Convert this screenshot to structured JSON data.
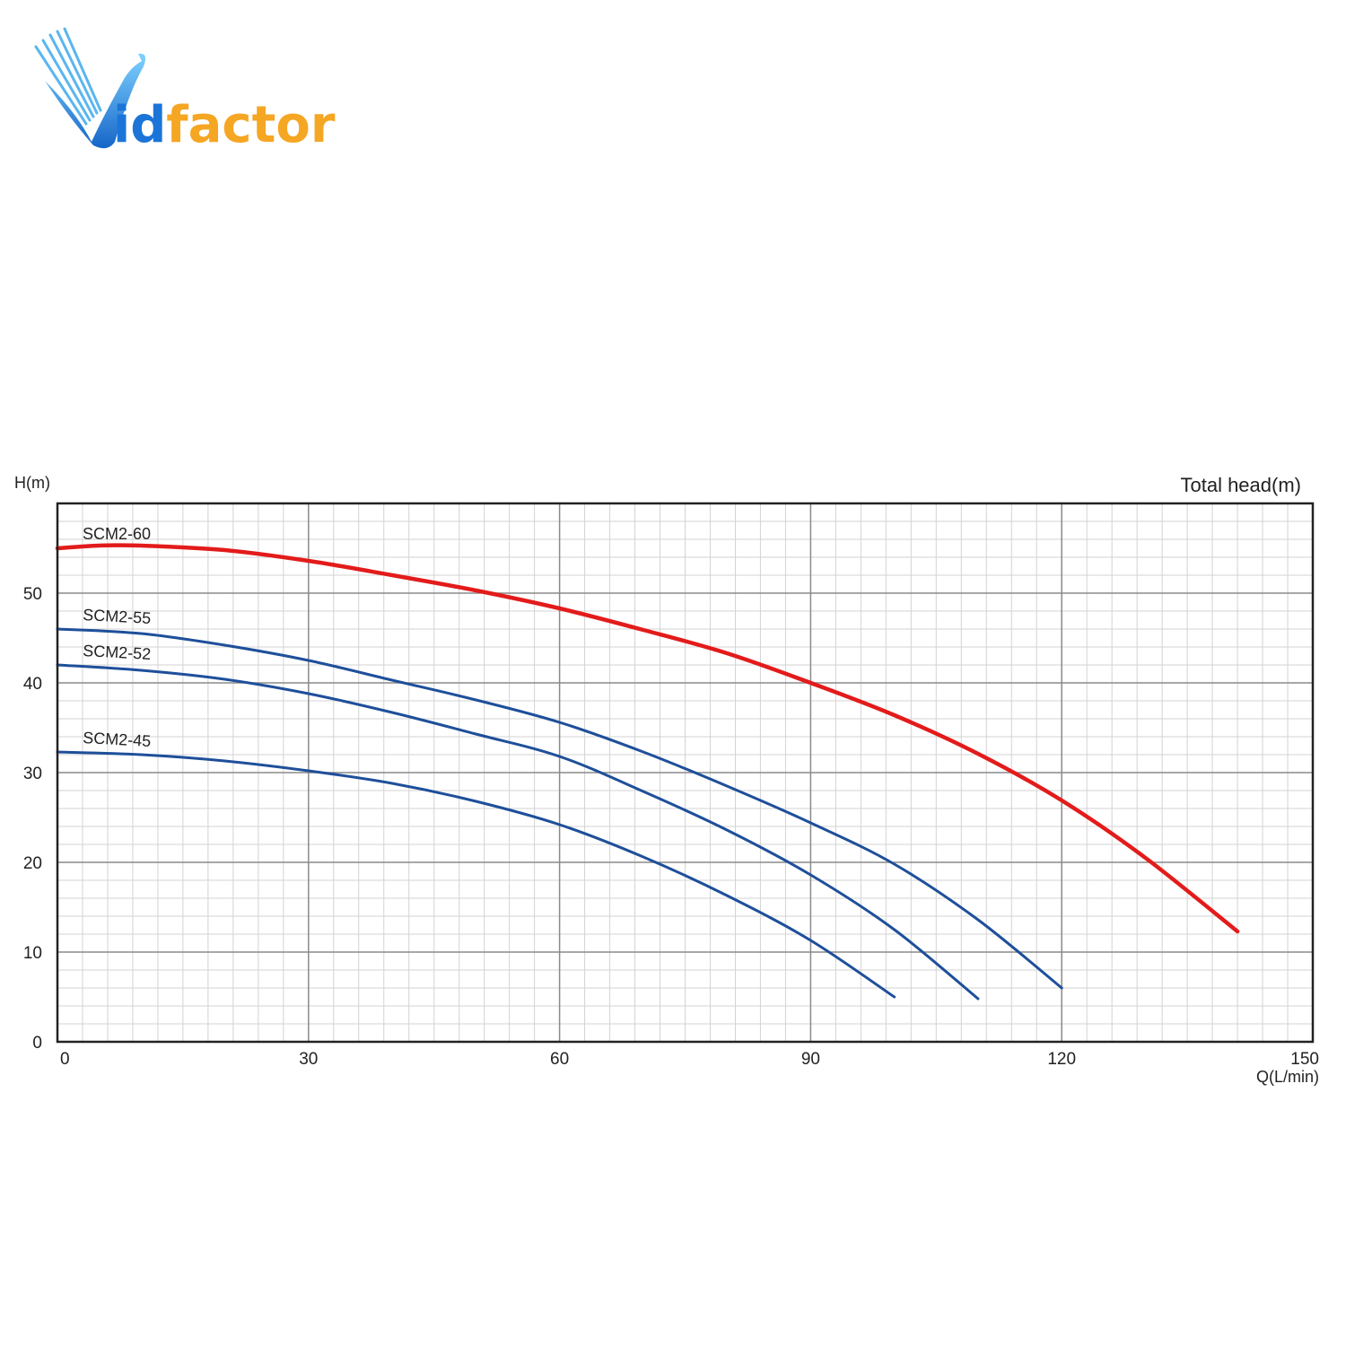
{
  "brand": {
    "name": "Vidfactor",
    "primary_color": "#1b75d8",
    "accent_color": "#f5a623"
  },
  "chart_data": {
    "type": "line",
    "title": "Total head(m)",
    "xlabel": "Q(L/min)",
    "ylabel": "H(m)",
    "xlim": [
      0,
      150
    ],
    "ylim": [
      0,
      60
    ],
    "x_ticks": [
      "0",
      "30",
      "60",
      "90",
      "120",
      "150"
    ],
    "y_ticks": [
      "0",
      "10",
      "20",
      "30",
      "40",
      "50"
    ],
    "grid": true,
    "minor_grid": true,
    "series": [
      {
        "name": "SCM2-60",
        "color": "#e31b1b",
        "x": [
          0,
          5,
          10,
          20,
          30,
          40,
          50,
          60,
          70,
          80,
          90,
          100,
          110,
          120,
          130,
          141
        ],
        "y": [
          55,
          55.3,
          55.3,
          54.8,
          53.6,
          52,
          50.3,
          48.3,
          45.9,
          43.3,
          40,
          36.4,
          32.1,
          26.9,
          20.5,
          12.3
        ]
      },
      {
        "name": "SCM2-55",
        "color": "#1e4f9a",
        "x": [
          0,
          10,
          20,
          30,
          40,
          50,
          60,
          70,
          80,
          90,
          100,
          110,
          120
        ],
        "y": [
          46,
          45.5,
          44.2,
          42.5,
          40.3,
          38.1,
          35.6,
          32.3,
          28.5,
          24.4,
          19.8,
          13.6,
          6
        ]
      },
      {
        "name": "SCM2-52",
        "color": "#1e4f9a",
        "x": [
          0,
          10,
          20,
          30,
          40,
          50,
          60,
          70,
          80,
          90,
          100,
          110
        ],
        "y": [
          42,
          41.4,
          40.4,
          38.8,
          36.7,
          34.3,
          31.8,
          27.9,
          23.6,
          18.6,
          12.5,
          4.8
        ]
      },
      {
        "name": "SCM2-45",
        "color": "#1e4f9a",
        "x": [
          0,
          10,
          20,
          30,
          40,
          50,
          60,
          70,
          80,
          90,
          100
        ],
        "y": [
          32.3,
          32,
          31.3,
          30.2,
          28.8,
          26.8,
          24.2,
          20.6,
          16.3,
          11.3,
          5
        ]
      }
    ]
  }
}
